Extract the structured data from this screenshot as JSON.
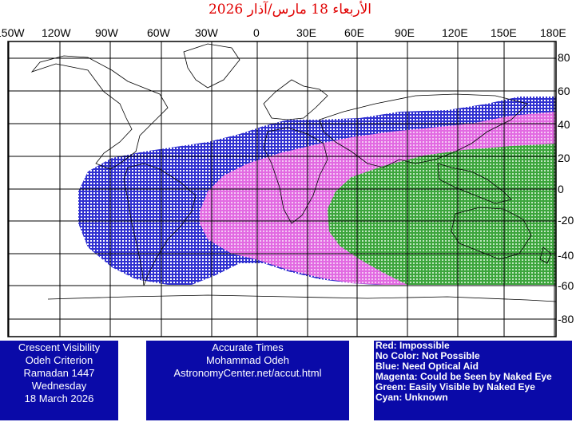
{
  "title": "الأربعاء 18 مارس/آذار 2026",
  "longitude_labels": [
    "150W",
    "120W",
    "90W",
    "60W",
    "30W",
    "0",
    "30E",
    "60E",
    "90E",
    "120E",
    "150E",
    "180E"
  ],
  "latitude_labels": [
    "80",
    "60",
    "40",
    "20",
    "0",
    "-20",
    "-40",
    "-60",
    "-80"
  ],
  "left_box": [
    "Crescent Visibility",
    "Odeh Criterion",
    "Ramadan 1447",
    "Wednesday",
    "18 March 2026"
  ],
  "center_box": [
    "Accurate Times",
    "Mohammad Odeh",
    "AstronomyCenter.net/accut.html"
  ],
  "legend": [
    "Red: Impossible",
    "No Color: Not Possible",
    "Blue: Need Optical Aid",
    "Magenta: Could be Seen by Naked Eye",
    "Green: Easily Visible by Naked Eye",
    "Cyan: Unknown"
  ],
  "colors": {
    "blue_zone": "#1a1acc",
    "magenta_zone": "#e060e0",
    "green_zone": "#2e9e2e",
    "title": "#e00000",
    "info_box": "#0a0aa8"
  }
}
